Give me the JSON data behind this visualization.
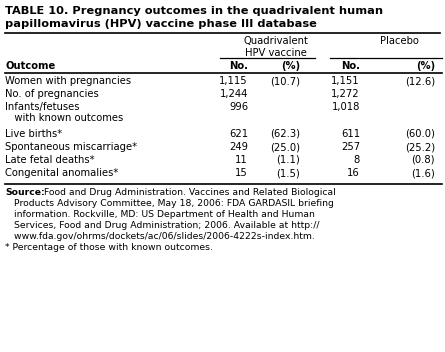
{
  "title_line1": "TABLE 10. Pregnancy outcomes in the quadrivalent human",
  "title_line2": "papillomavirus (HPV) vaccine phase III database",
  "col_header_group1": "Quadrivalent\nHPV vaccine",
  "col_header_group2": "Placebo",
  "rows": [
    {
      "label": "Women with pregnancies",
      "v1": "1,115",
      "p1": "(10.7)",
      "v2": "1,151",
      "p2": "(12.6)",
      "two_line": false
    },
    {
      "label": "No. of pregnancies",
      "v1": "1,244",
      "p1": "",
      "v2": "1,272",
      "p2": "",
      "two_line": false
    },
    {
      "label": "Infants/fetuses",
      "label2": "   with known outcomes",
      "v1": "996",
      "p1": "",
      "v2": "1,018",
      "p2": "",
      "two_line": true
    },
    {
      "label": "Live births*",
      "v1": "621",
      "p1": "(62.3)",
      "v2": "611",
      "p2": "(60.0)",
      "two_line": false
    },
    {
      "label": "Spontaneous miscarriage*",
      "v1": "249",
      "p1": "(25.0)",
      "v2": "257",
      "p2": "(25.2)",
      "two_line": false
    },
    {
      "label": "Late fetal deaths*",
      "v1": "11",
      "p1": "(1.1)",
      "v2": "8",
      "p2": "(0.8)",
      "two_line": false
    },
    {
      "label": "Congenital anomalies*",
      "v1": "15",
      "p1": "(1.5)",
      "v2": "16",
      "p2": "(1.6)",
      "two_line": false
    }
  ],
  "source_bold": "Source:",
  "source_rest": " Food and Drug Administration. Vaccines and Related Biological",
  "source_lines": [
    "   Products Advisory Committee, May 18, 2006: FDA GARDASIL briefing",
    "   information. Rockville, MD: US Department of Health and Human",
    "   Services, Food and Drug Administration; 2006. Available at http://",
    "   www.fda.gov/ohrms/dockets/ac/06/slides/2006-4222s-index.htm."
  ],
  "footnote": "* Percentage of those with known outcomes.",
  "bg_color": "#ffffff",
  "text_color": "#000000",
  "font_size": 7.2,
  "title_font_size": 8.2
}
